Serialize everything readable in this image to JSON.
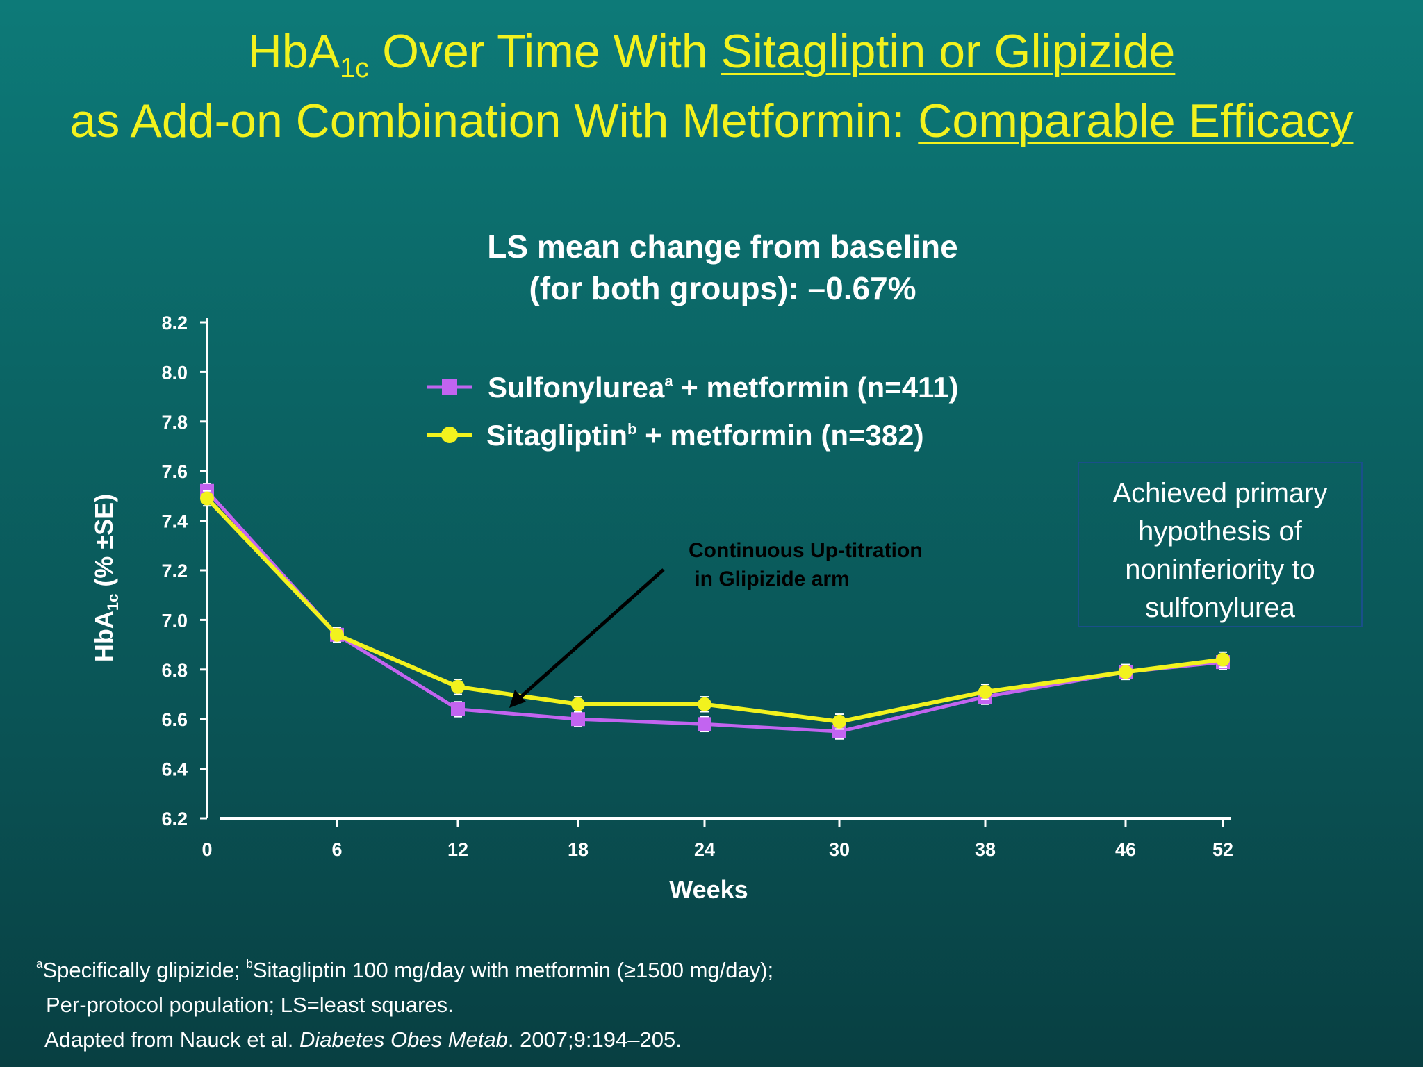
{
  "title": {
    "line1_pre": "HbA",
    "line1_sub": "1c",
    "line1_mid": " Over Time With ",
    "line1_underlined": "Sitagliptin or Glipizide",
    "line2_pre": "as Add-on Combination With Metformin: ",
    "line2_underlined": "Comparable Efficacy"
  },
  "subtitle": {
    "line1": "LS mean change from baseline",
    "line2": "(for both groups): –0.67%"
  },
  "note_box": {
    "line1": "Achieved primary",
    "line2": "hypothesis of",
    "line3": "noninferiority to",
    "line4": "sulfonylurea"
  },
  "annotation": {
    "line1": "Continuous Up-titration",
    "line2": " in Glipizide arm"
  },
  "footnotes": {
    "line1_sup_a": "a",
    "line1_a": "Specifically glipizide; ",
    "line1_sup_b": "b",
    "line1_b": "Sitagliptin 100 mg/day with metformin (≥1500 mg/day);",
    "line2": "Per-protocol population; LS=least squares.",
    "line3_pre": "Adapted from Nauck et al. ",
    "line3_journal": "Diabetes Obes Metab",
    "line3_post": ". 2007;9:194–205."
  },
  "chart_data": {
    "type": "line",
    "x": [
      "0",
      "6",
      "12",
      "18",
      "24",
      "30",
      "38",
      "46",
      "52"
    ],
    "xlabel": "Weeks",
    "ylabel_pre": "HbA",
    "ylabel_sub": "1c",
    "ylabel_post": " (% ±SE)",
    "ylim": [
      6.2,
      8.2
    ],
    "yticks": [
      "8.2",
      "8.0",
      "7.8",
      "7.6",
      "7.4",
      "7.2",
      "7.0",
      "6.8",
      "6.6",
      "6.4",
      "6.2"
    ],
    "grid": false,
    "legend_position": "top-center",
    "series": [
      {
        "name": "Sulfonylurea",
        "name_sup": "a",
        "name_post": " + metformin (n=411)",
        "marker": "square",
        "color": "#c264f0",
        "values": [
          7.52,
          6.94,
          6.64,
          6.6,
          6.58,
          6.55,
          6.69,
          6.79,
          6.83
        ],
        "se": 0.03
      },
      {
        "name": "Sitagliptin",
        "name_sup": "b",
        "name_post": " + metformin (n=382)",
        "marker": "circle",
        "color": "#f2f21e",
        "values": [
          7.49,
          6.94,
          6.73,
          6.66,
          6.66,
          6.59,
          6.71,
          6.79,
          6.84
        ],
        "se": 0.03
      }
    ]
  }
}
